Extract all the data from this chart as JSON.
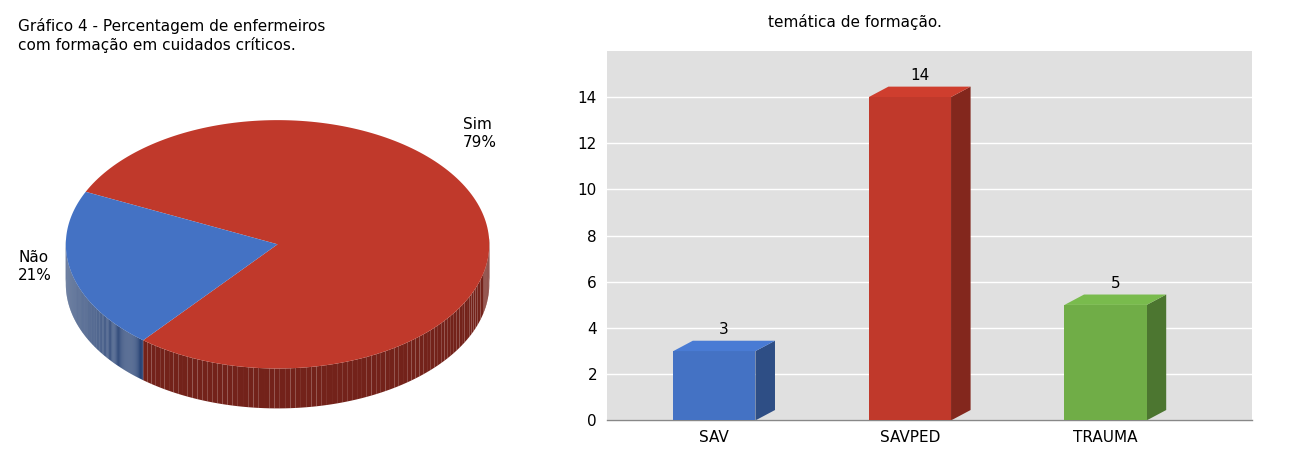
{
  "pie_title": "Gráfico 4 - Percentagem de enfermeiros\ncom formação em cuidados críticos.",
  "pie_labels_left": "Não\n21%",
  "pie_labels_right": "Sim\n79%",
  "pie_values": [
    21,
    79
  ],
  "pie_colors": [
    "#4472C4",
    "#C0392B"
  ],
  "bar_title": "temática de formação.",
  "bar_categories": [
    "SAV",
    "SAVPED",
    "TRAUMA"
  ],
  "bar_values": [
    3,
    14,
    5
  ],
  "bar_colors": [
    "#4472C4",
    "#C0392B",
    "#70AD47"
  ],
  "bar_ylim": [
    0,
    14
  ],
  "bar_yticks": [
    0,
    2,
    4,
    6,
    8,
    10,
    12,
    14
  ],
  "background_color": "#FFFFFF",
  "grid_color": "#CCCCCC",
  "bar_bg": "#E0E0E0"
}
